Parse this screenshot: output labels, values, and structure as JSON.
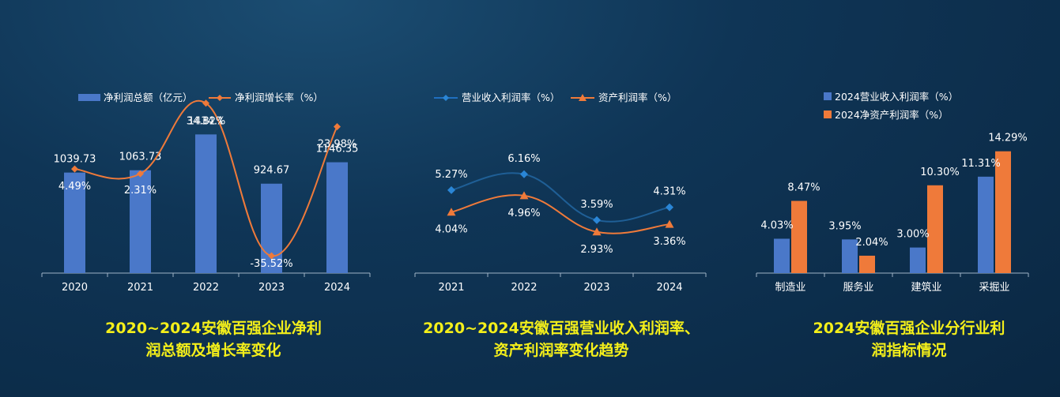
{
  "colors": {
    "blue": "#4a78c9",
    "orange": "#ef7a3a",
    "axis": "#9fb3c6",
    "caption": "#f4ef1a"
  },
  "chart_data": [
    {
      "type": "bar",
      "categories": [
        "2020",
        "2021",
        "2022",
        "2023",
        "2024"
      ],
      "series": [
        {
          "name": "净利润总额（亿元）",
          "type": "bar",
          "values": [
            1039.73,
            1063.73,
            1434.1,
            924.67,
            1146.35
          ],
          "labels": [
            "1039.73",
            "1063.73",
            "1434.1",
            "924.67",
            "1146.35"
          ]
        },
        {
          "name": "净利润增长率（%）",
          "type": "line",
          "values": [
            4.49,
            2.31,
            34.82,
            -35.52,
            23.98
          ],
          "labels": [
            "4.49%",
            "2.31%",
            "34.82%",
            "-35.52%",
            "23.98%"
          ]
        }
      ],
      "title": "2020~2024安徽百强企业净利润总额及增长率变化"
    },
    {
      "type": "line",
      "categories": [
        "2021",
        "2022",
        "2023",
        "2024"
      ],
      "series": [
        {
          "name": "营业收入利润率（%）",
          "values": [
            5.27,
            6.16,
            3.59,
            4.31
          ],
          "labels": [
            "5.27%",
            "6.16%",
            "3.59%",
            "4.31%"
          ]
        },
        {
          "name": "资产利润率（%）",
          "values": [
            4.04,
            4.96,
            2.93,
            3.36
          ],
          "labels": [
            "4.04%",
            "4.96%",
            "2.93%",
            "3.36%"
          ]
        }
      ],
      "title": "2020~2024安徽百强营业收入利润率、资产利润率变化趋势"
    },
    {
      "type": "bar",
      "categories": [
        "制造业",
        "服务业",
        "建筑业",
        "采掘业"
      ],
      "series": [
        {
          "name": "2024营业收入利润率（%）",
          "values": [
            4.03,
            3.95,
            3.0,
            11.31
          ],
          "labels": [
            "4.03%",
            "3.95%",
            "3.00%",
            "11.31%"
          ]
        },
        {
          "name": "2024净资产利润率（%）",
          "values": [
            8.47,
            2.04,
            10.3,
            14.29
          ],
          "labels": [
            "8.47%",
            "2.04%",
            "10.30%",
            "14.29%"
          ]
        }
      ],
      "title": "2024安徽百强企业分行业利润指标情况"
    }
  ],
  "captions": [
    {
      "line1": "2020~2024安徽百强企业净利",
      "line2": "润总额及增长率变化"
    },
    {
      "line1": "2020~2024安徽百强营业收入利润率、",
      "line2": "资产利润率变化趋势"
    },
    {
      "line1": "2024安徽百强企业分行业利",
      "line2": "润指标情况"
    }
  ]
}
